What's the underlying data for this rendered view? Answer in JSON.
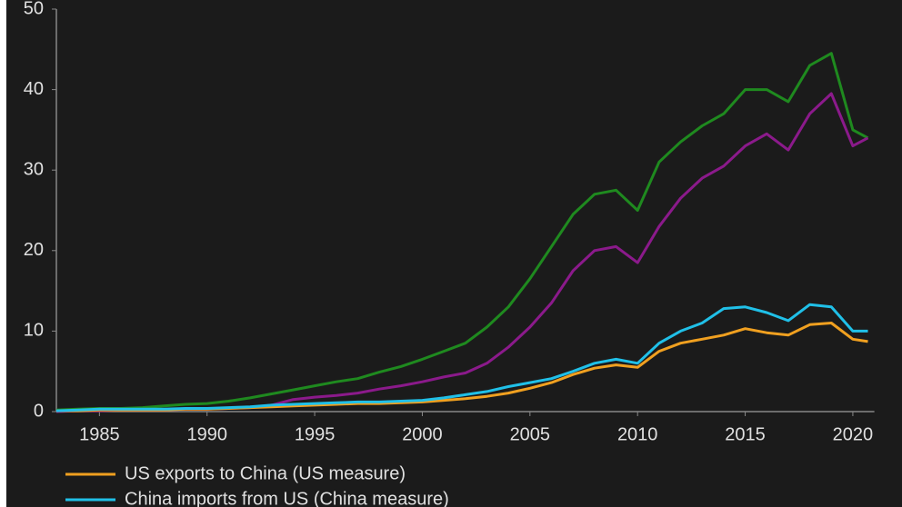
{
  "chart_data": {
    "type": "line",
    "x": [
      1983,
      1984,
      1985,
      1986,
      1987,
      1988,
      1989,
      1990,
      1991,
      1992,
      1993,
      1994,
      1995,
      1996,
      1997,
      1998,
      1999,
      2000,
      2001,
      2002,
      2003,
      2004,
      2005,
      2006,
      2007,
      2008,
      2009,
      2010,
      2011,
      2012,
      2013,
      2014,
      2015,
      2016,
      2017,
      2018,
      2019,
      2020,
      2020.7
    ],
    "series": [
      {
        "color": "#1f8a1f",
        "values": [
          0.2,
          0.3,
          0.4,
          0.4,
          0.5,
          0.7,
          0.9,
          1.0,
          1.3,
          1.7,
          2.2,
          2.7,
          3.2,
          3.7,
          4.1,
          4.9,
          5.6,
          6.5,
          7.5,
          8.5,
          10.5,
          13,
          16.5,
          20.5,
          24.5,
          27,
          27.5,
          25,
          31,
          33.5,
          35.5,
          37,
          40,
          40,
          38.5,
          43,
          44.5,
          35,
          34
        ]
      },
      {
        "color": "#8b1a8b",
        "values": [
          0,
          0.1,
          0.1,
          0.2,
          0.2,
          0.2,
          0.3,
          0.3,
          0.4,
          0.5,
          0.8,
          1.5,
          1.8,
          2,
          2.3,
          2.8,
          3.2,
          3.7,
          4.3,
          4.8,
          6,
          8,
          10.5,
          13.5,
          17.5,
          20,
          20.5,
          18.5,
          23,
          26.5,
          29,
          30.5,
          33,
          34.5,
          32.5,
          37,
          39.5,
          33,
          34
        ]
      },
      {
        "name": "US exports to China (US measure)",
        "color": "#f0a020",
        "values": [
          0.1,
          0.1,
          0.2,
          0.2,
          0.2,
          0.2,
          0.3,
          0.3,
          0.4,
          0.5,
          0.6,
          0.7,
          0.8,
          0.9,
          1.0,
          1.0,
          1.1,
          1.2,
          1.4,
          1.6,
          1.9,
          2.3,
          2.9,
          3.6,
          4.6,
          5.4,
          5.8,
          5.5,
          7.5,
          8.5,
          9,
          9.5,
          10.3,
          9.8,
          9.5,
          10.8,
          11,
          9,
          8.7
        ]
      },
      {
        "name": "China imports from US (China measure)",
        "color": "#20c0e8",
        "values": [
          0.1,
          0.2,
          0.3,
          0.3,
          0.3,
          0.3,
          0.4,
          0.4,
          0.5,
          0.6,
          0.8,
          0.9,
          1.0,
          1.1,
          1.2,
          1.2,
          1.3,
          1.4,
          1.7,
          2.1,
          2.5,
          3.1,
          3.6,
          4.1,
          5,
          6,
          6.5,
          6,
          8.5,
          10,
          11,
          12.8,
          13,
          12.3,
          11.3,
          13.3,
          13,
          10,
          10
        ]
      }
    ],
    "xlim": [
      1983,
      2021
    ],
    "xticks": [
      1985,
      1990,
      1995,
      2000,
      2005,
      2010,
      2015,
      2020
    ],
    "ylim": [
      0,
      50
    ],
    "yticks": [
      0,
      10,
      20,
      30,
      40,
      50
    ]
  }
}
